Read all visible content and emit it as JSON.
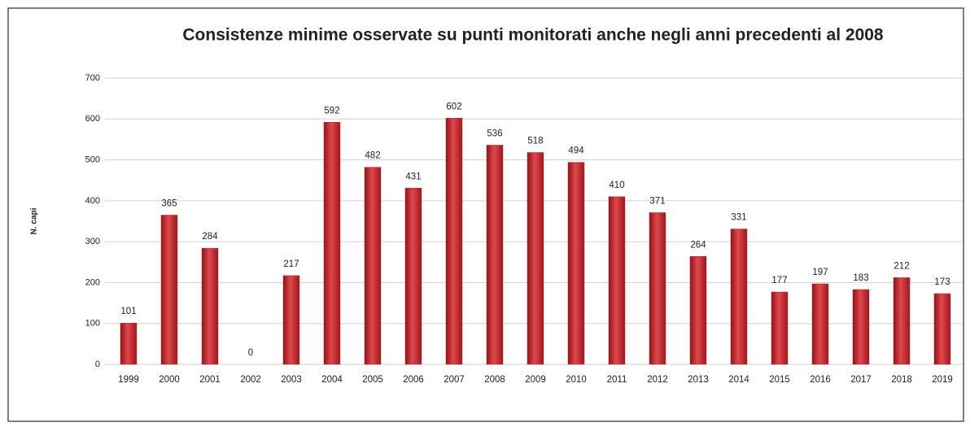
{
  "chart_data": {
    "type": "bar",
    "title": "Consistenze minime osservate su punti monitorati anche negli anni precedenti al 2008",
    "y_label": "N. capi",
    "categories": [
      "1999",
      "2000",
      "2001",
      "2002",
      "2003",
      "2004",
      "2005",
      "2006",
      "2007",
      "2008",
      "2009",
      "2010",
      "2011",
      "2012",
      "2013",
      "2014",
      "2015",
      "2016",
      "2017",
      "2018",
      "2019"
    ],
    "values": [
      101,
      365,
      284,
      0,
      217,
      592,
      482,
      431,
      602,
      536,
      518,
      494,
      410,
      371,
      264,
      331,
      177,
      197,
      183,
      212,
      173
    ],
    "color": "#c0272d",
    "ylim": [
      0,
      700
    ],
    "yticks": [
      0,
      100,
      200,
      300,
      400,
      500,
      600,
      700
    ],
    "grid": true
  }
}
